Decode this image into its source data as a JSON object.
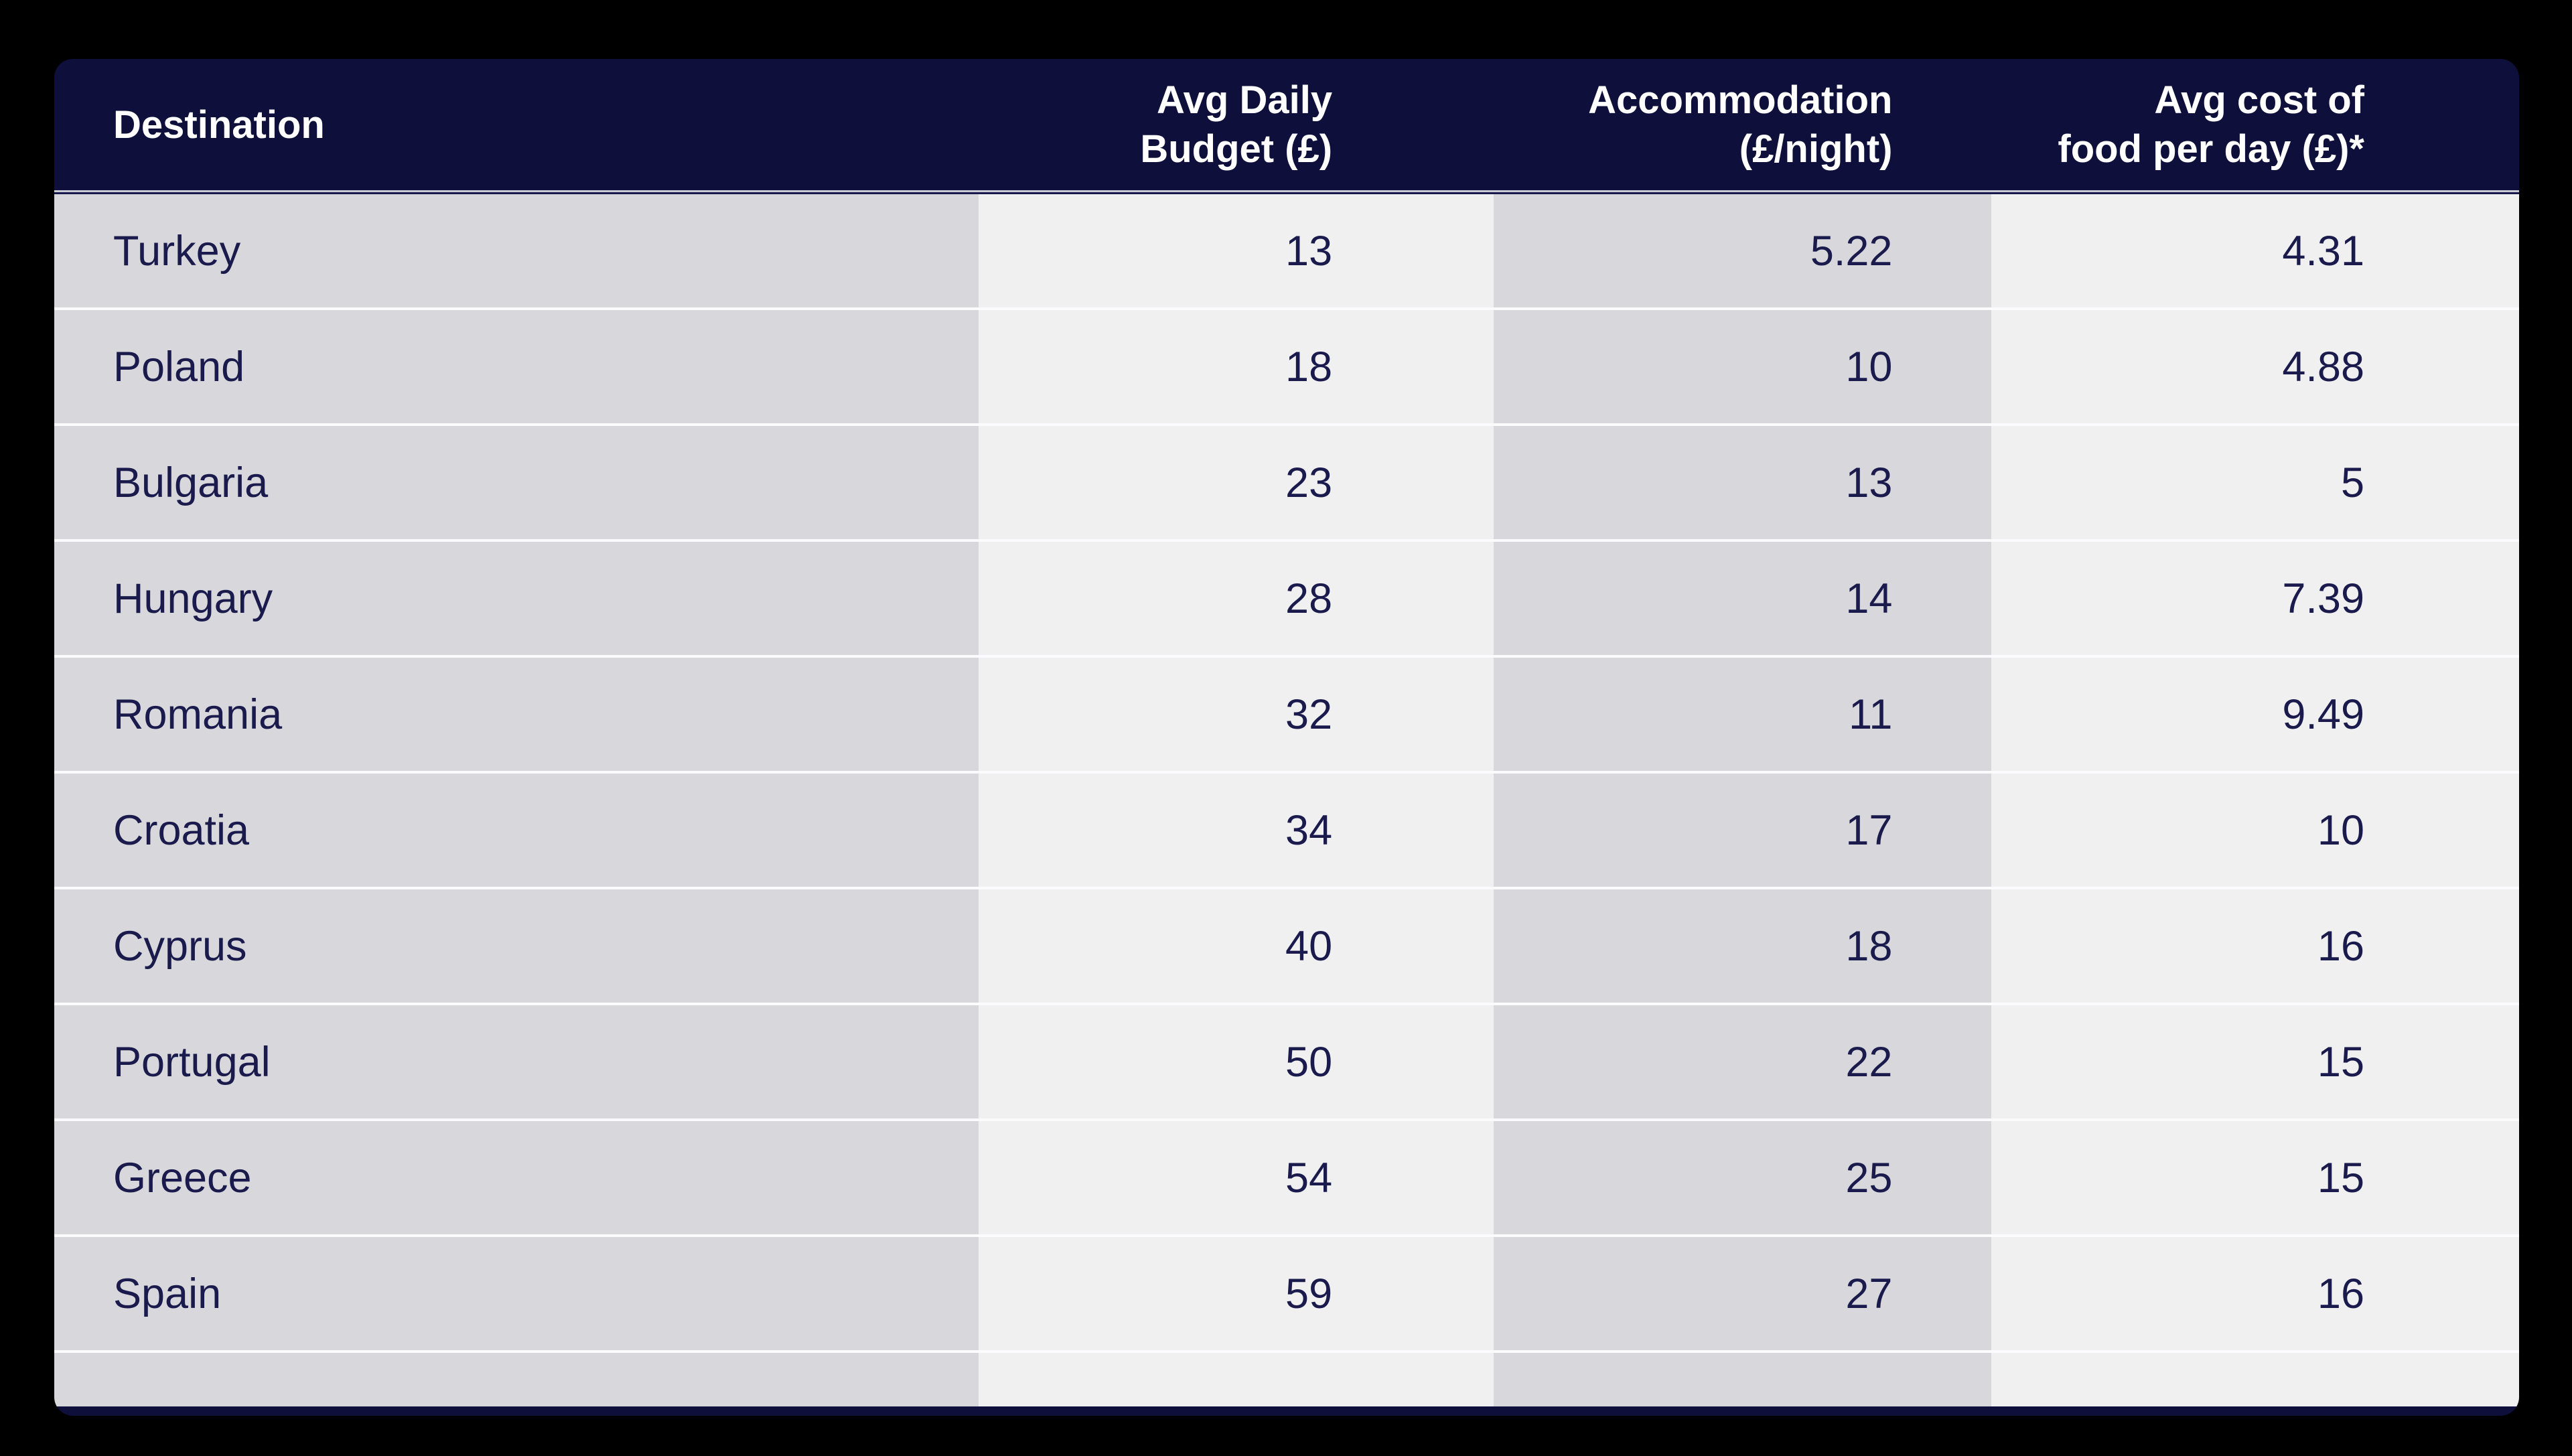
{
  "chart_data": {
    "type": "table",
    "columns": [
      "Destination",
      "Avg Daily Budget (£)",
      "Accommodation (£/night)",
      "Avg cost of food per day (£)*"
    ],
    "rows": [
      [
        "Turkey",
        "13",
        "5.22",
        "4.31"
      ],
      [
        "Poland",
        "18",
        "10",
        "4.88"
      ],
      [
        "Bulgaria",
        "23",
        "13",
        "5"
      ],
      [
        "Hungary",
        "28",
        "14",
        "7.39"
      ],
      [
        "Romania",
        "32",
        "11",
        "9.49"
      ],
      [
        "Croatia",
        "34",
        "17",
        "10"
      ],
      [
        "Cyprus",
        "40",
        "18",
        "16"
      ],
      [
        "Portugal",
        "50",
        "22",
        "15"
      ],
      [
        "Greece",
        "54",
        "25",
        "15"
      ],
      [
        "Spain",
        "59",
        "27",
        "16"
      ]
    ],
    "layout_hints": {
      "column_stripes": [
        "gray",
        "light",
        "gray",
        "light"
      ],
      "header_position": "top",
      "value_alignment": "right",
      "destination_alignment": "left"
    }
  },
  "header": {
    "destination": "Destination",
    "budget_line1": "Avg Daily",
    "budget_line2": "Budget (£)",
    "accommodation_line1": "Accommodation",
    "accommodation_line2": "(£/night)",
    "food_line1": "Avg cost of",
    "food_line2": "food per day (£)*"
  },
  "colors": {
    "page_background": "#000000",
    "header_background": "#0e0f3a",
    "footer_background": "#0e0f3a",
    "stripe_gray": "#d8d8dc",
    "stripe_light": "#f0f0f1",
    "row_divider": "#fbfbfd",
    "header_text": "#ffffff",
    "body_text": "#1a1b4c"
  }
}
